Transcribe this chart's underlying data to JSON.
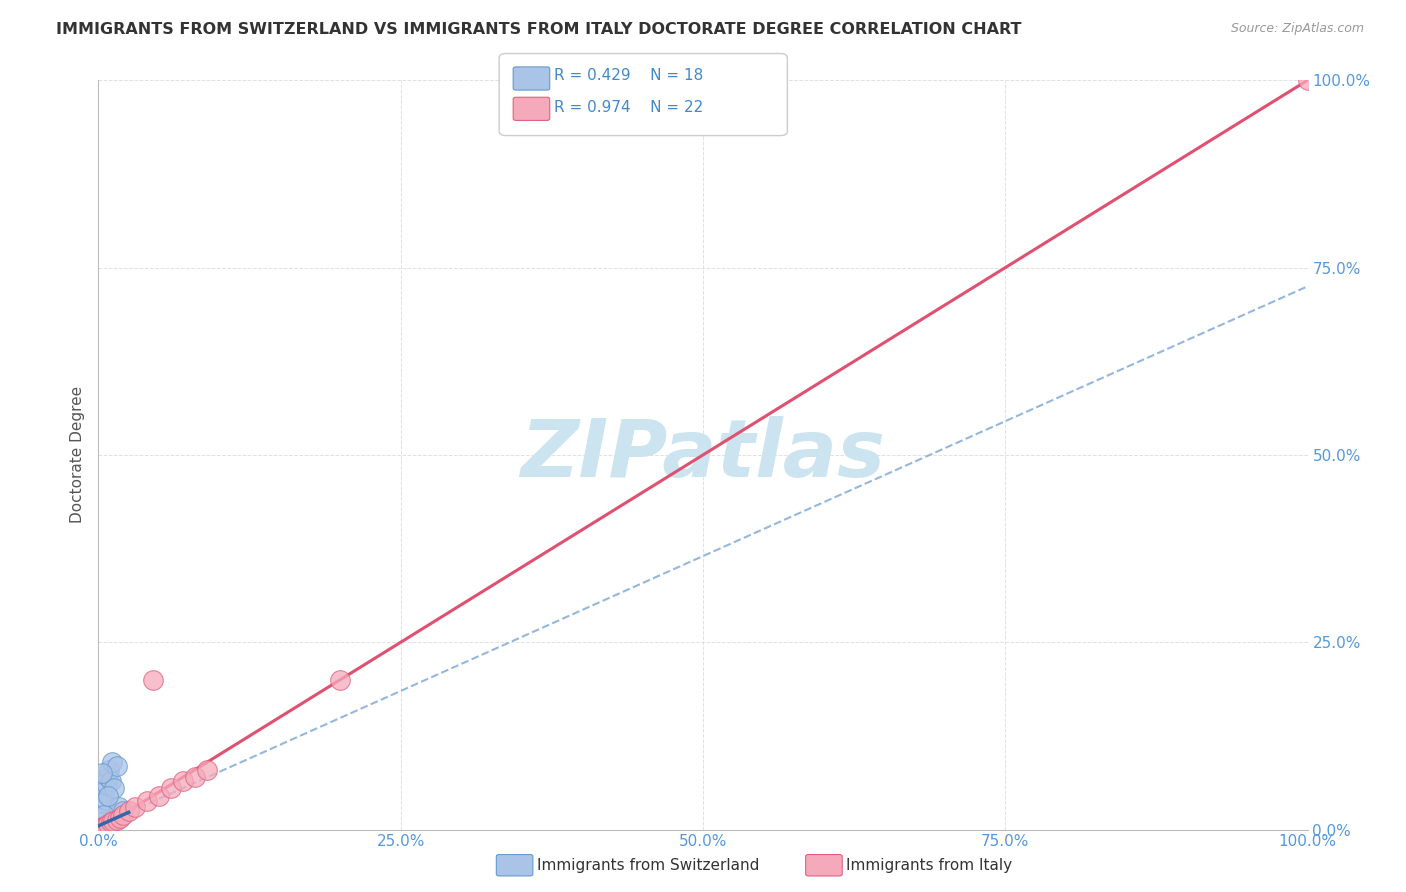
{
  "title": "IMMIGRANTS FROM SWITZERLAND VS IMMIGRANTS FROM ITALY DOCTORATE DEGREE CORRELATION CHART",
  "source": "Source: ZipAtlas.com",
  "ylabel": "Doctorate Degree",
  "r_switzerland": 0.429,
  "n_switzerland": 18,
  "r_italy": 0.974,
  "n_italy": 22,
  "color_switzerland_fill": "#aac4e8",
  "color_switzerland_edge": "#6699cc",
  "color_italy_fill": "#f5aabb",
  "color_italy_edge": "#e06080",
  "color_trendline_swiss_dashed": "#8ab0d8",
  "color_trendline_swiss_solid": "#3366aa",
  "color_trendline_italy": "#e05070",
  "color_title": "#333333",
  "color_axis_ticks": "#5599dd",
  "color_source": "#999999",
  "color_legend_text": "#4488cc",
  "color_watermark": "#cce4f0",
  "color_grid": "#cccccc",
  "xlim": [
    0.0,
    100.0
  ],
  "ylim": [
    0.0,
    100.0
  ],
  "xticks": [
    0.0,
    25.0,
    50.0,
    75.0,
    100.0
  ],
  "yticks": [
    0.0,
    25.0,
    50.0,
    75.0,
    100.0
  ],
  "swiss_x": [
    0.1,
    0.2,
    0.3,
    0.4,
    0.5,
    0.6,
    0.7,
    0.8,
    0.9,
    1.0,
    1.1,
    1.3,
    1.5,
    1.7,
    2.0,
    0.3,
    0.5,
    0.8
  ],
  "swiss_y": [
    0.1,
    0.5,
    1.5,
    3.5,
    5.0,
    4.0,
    6.0,
    7.0,
    8.0,
    6.5,
    9.0,
    5.5,
    8.5,
    3.0,
    2.5,
    7.5,
    2.0,
    4.5
  ],
  "italy_x": [
    0.1,
    0.2,
    0.3,
    0.5,
    0.6,
    0.8,
    1.0,
    1.2,
    1.5,
    1.8,
    2.0,
    2.5,
    3.0,
    4.0,
    4.5,
    5.0,
    6.0,
    7.0,
    8.0,
    9.0,
    20.0,
    100.0
  ],
  "italy_y": [
    0.1,
    0.2,
    0.3,
    0.4,
    0.5,
    0.8,
    1.0,
    1.2,
    1.3,
    1.6,
    2.0,
    2.5,
    3.0,
    3.8,
    20.0,
    4.5,
    5.5,
    6.5,
    7.0,
    8.0,
    20.0,
    100.0
  ],
  "swiss_trend_slope": 0.72,
  "swiss_trend_intercept": 0.5,
  "italy_trend_slope": 1.0,
  "italy_trend_intercept": 0.0,
  "marker_size": 200,
  "background_color": "#ffffff"
}
